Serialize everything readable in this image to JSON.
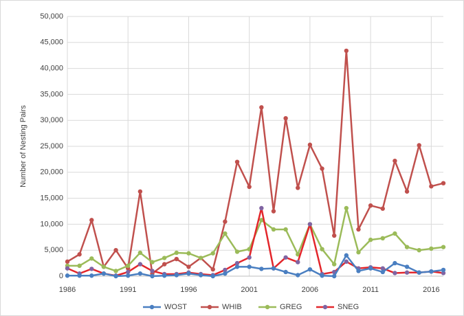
{
  "chart_data": {
    "type": "line",
    "y_label": "Number of Nesting Pairs",
    "x": [
      1986,
      1987,
      1988,
      1989,
      1990,
      1991,
      1992,
      1993,
      1994,
      1995,
      1996,
      1997,
      1998,
      1999,
      2000,
      2001,
      2002,
      2003,
      2004,
      2005,
      2006,
      2007,
      2008,
      2009,
      2010,
      2011,
      2012,
      2013,
      2014,
      2015,
      2016,
      2017
    ],
    "xlim": [
      1986,
      2017
    ],
    "xticks": [
      1986,
      1991,
      1996,
      2001,
      2006,
      2011,
      2016
    ],
    "ylim": [
      0,
      50000
    ],
    "yticks": [
      0,
      {
        "value": 5000,
        "label": "5,000"
      },
      {
        "value": 10000,
        "label": "10,000"
      },
      {
        "value": 15000,
        "label": "15,000"
      },
      {
        "value": 20000,
        "label": "20,000"
      },
      {
        "value": 25000,
        "label": "25,000"
      },
      {
        "value": 30000,
        "label": "30,000"
      },
      {
        "value": 35000,
        "label": "35,000"
      },
      {
        "value": 40000,
        "label": "40,000"
      },
      {
        "value": 45000,
        "label": "45,000"
      },
      {
        "value": 50000,
        "label": "50,000"
      }
    ],
    "grid": true,
    "legend": "bottom",
    "series": [
      {
        "name": "WOST",
        "color": "#4a7fc1",
        "marker_color": "#4a7fc1",
        "values": [
          100,
          100,
          100,
          500,
          0,
          100,
          500,
          0,
          100,
          200,
          500,
          200,
          0,
          500,
          1800,
          1800,
          1400,
          1500,
          800,
          200,
          1300,
          100,
          0,
          4000,
          1000,
          1500,
          800,
          2500,
          1800,
          700,
          900,
          1200
        ]
      },
      {
        "name": "WHIB",
        "color": "#c0504d",
        "marker_color": "#c0504d",
        "values": [
          2800,
          4200,
          10800,
          1800,
          5000,
          1500,
          16300,
          500,
          2300,
          3300,
          1800,
          3500,
          1300,
          10500,
          22000,
          17200,
          32500,
          12500,
          30400,
          17000,
          25300,
          20700,
          7800,
          43400,
          9000,
          13600,
          13000,
          22200,
          16300,
          25200,
          17300,
          17900
        ]
      },
      {
        "name": "GREG",
        "color": "#9bbb59",
        "marker_color": "#9bbb59",
        "values": [
          2000,
          2000,
          3400,
          1800,
          1000,
          2000,
          4500,
          2700,
          3500,
          4500,
          4400,
          3500,
          4400,
          8200,
          4700,
          5200,
          10800,
          9000,
          9000,
          4200,
          10000,
          5200,
          2300,
          13100,
          4600,
          7000,
          7300,
          8200,
          5600,
          5000,
          5300,
          5600
        ]
      },
      {
        "name": "SNEG",
        "color": "#e3262b",
        "marker_color": "#8064a2",
        "values": [
          1500,
          500,
          1400,
          500,
          100,
          800,
          2300,
          1000,
          400,
          400,
          700,
          400,
          200,
          1200,
          2500,
          3600,
          13100,
          1500,
          3600,
          2700,
          10000,
          400,
          800,
          2800,
          1500,
          1700,
          1500,
          600,
          700,
          700,
          900,
          600
        ]
      }
    ]
  }
}
